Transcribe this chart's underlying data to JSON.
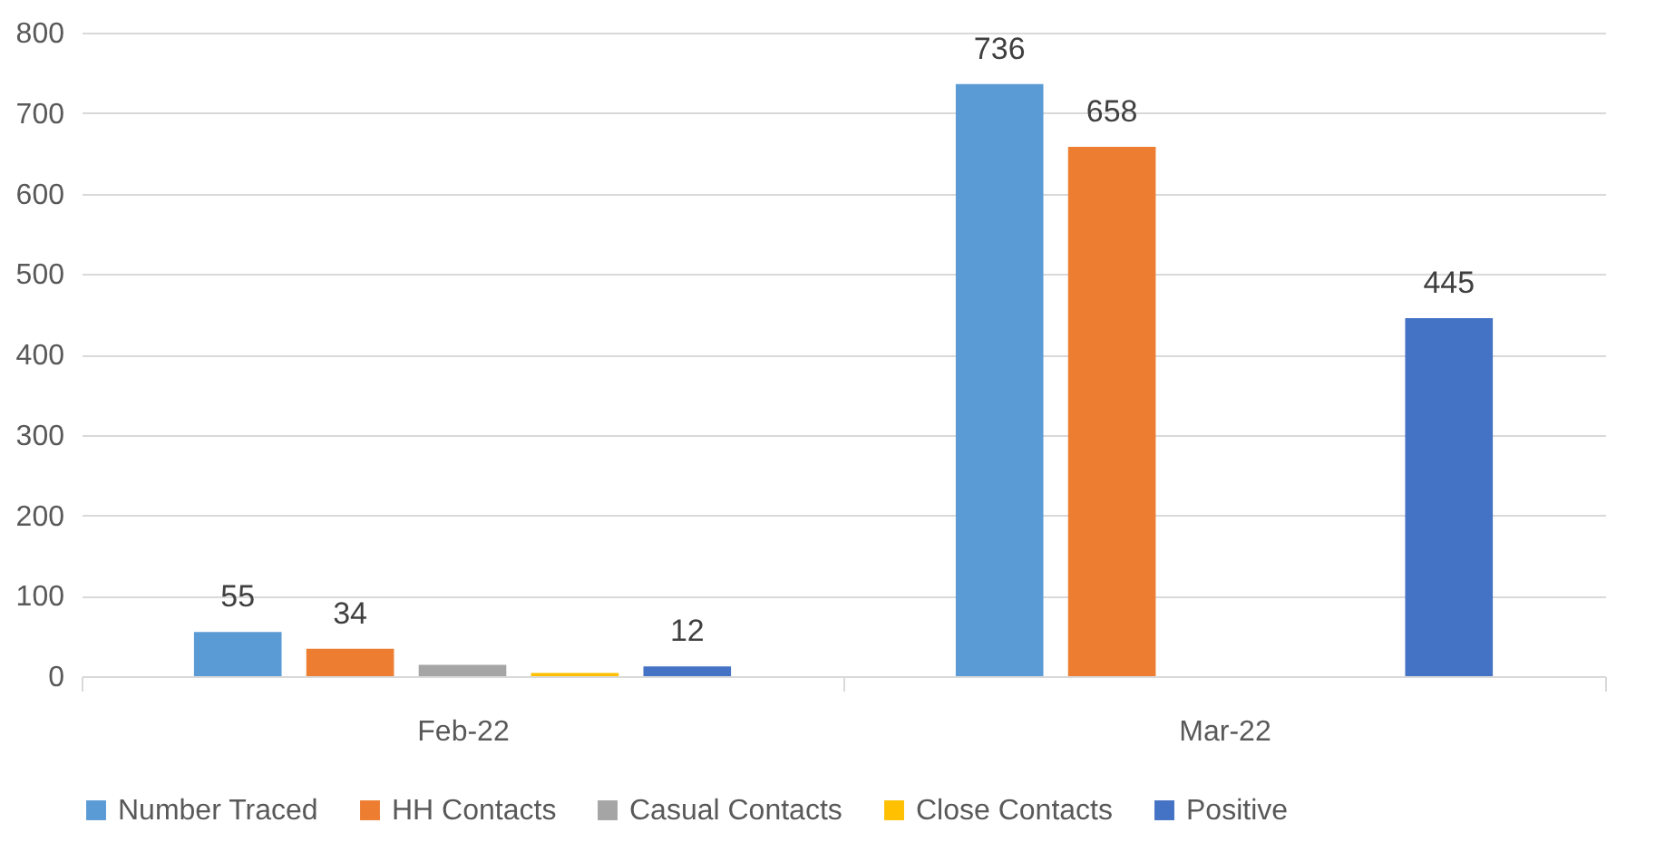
{
  "chart_data": {
    "type": "bar",
    "categories": [
      "Feb-22",
      "Mar-22"
    ],
    "series": [
      {
        "name": "Number Traced",
        "color": "#5b9bd5",
        "values": [
          55,
          736
        ],
        "value_labels": [
          "55",
          "736"
        ]
      },
      {
        "name": "HH Contacts",
        "color": "#ed7d31",
        "values": [
          34,
          658
        ],
        "value_labels": [
          "34",
          "658"
        ]
      },
      {
        "name": "Casual Contacts",
        "color": "#a5a5a5",
        "values": [
          14,
          null
        ],
        "value_labels": [
          null,
          null
        ]
      },
      {
        "name": "Close Contacts",
        "color": "#ffc000",
        "values": [
          4,
          null
        ],
        "value_labels": [
          null,
          null
        ]
      },
      {
        "name": "Positive",
        "color": "#4472c4",
        "values": [
          12,
          445
        ],
        "value_labels": [
          "12",
          "445"
        ]
      }
    ],
    "ylim": [
      0,
      800
    ],
    "yticks": [
      0,
      100,
      200,
      300,
      400,
      500,
      600,
      700,
      800
    ],
    "grid": "y",
    "legend": "bottom"
  }
}
